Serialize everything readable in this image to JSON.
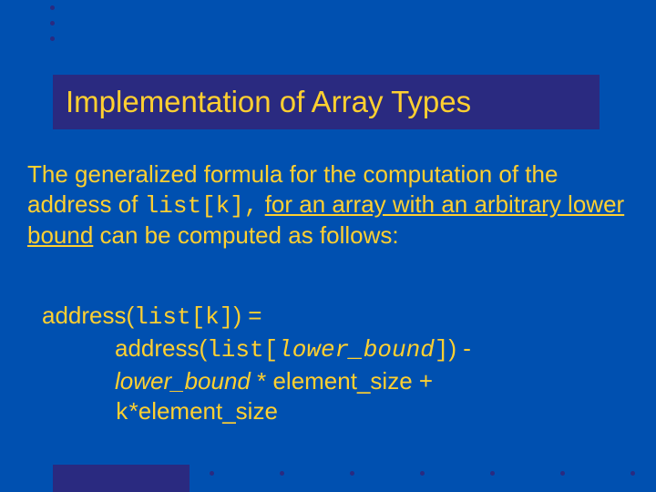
{
  "colors": {
    "background": "#0050b0",
    "text": "#ffd030",
    "accent_box": "#2a2a80"
  },
  "typography": {
    "title_fontsize": 33,
    "body_fontsize": 26,
    "mono_family": "Courier New"
  },
  "title": "Implementation of Array Types",
  "paragraph": {
    "t1": "The generalized formula for the computation of the address of ",
    "code1": "list[k],",
    "t2": " ",
    "u1": "for an array with an arbitrary lower bound",
    "t3": " can be computed as follows:"
  },
  "formula": {
    "l1a": "address(",
    "l1b": "list[k]",
    "l1c": ") =",
    "l2a": "address(",
    "l2b": "list[",
    "l2c": "lower_bound",
    "l2d": "]",
    "l2e": ") -",
    "l3a": "lower_bound",
    "l3b": " * element_size +",
    "l4a": "k",
    "l4b": "*element_size"
  }
}
